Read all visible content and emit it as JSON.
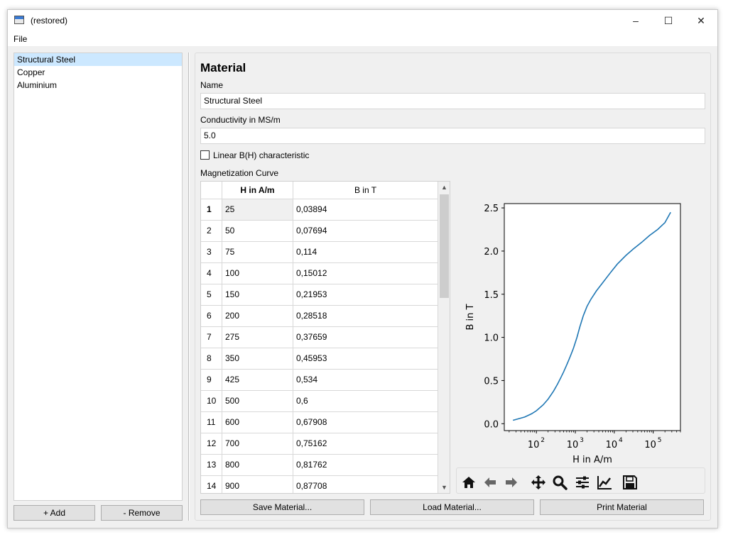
{
  "window": {
    "title": "(restored)",
    "minimize": "–",
    "maximize": "☐",
    "close": "✕"
  },
  "menu": {
    "file": "File"
  },
  "materials": {
    "items": [
      "Structural Steel",
      "Copper",
      "Aluminium"
    ],
    "selected_index": 0,
    "add_label": "+ Add",
    "remove_label": "- Remove"
  },
  "editor": {
    "heading": "Material",
    "name_label": "Name",
    "name_value": "Structural Steel",
    "conductivity_label": "Conductivity in MS/m",
    "conductivity_value": "5.0",
    "linear_label": "Linear B(H) characteristic",
    "linear_checked": false,
    "curve_label": "Magnetization Curve"
  },
  "table": {
    "columns": [
      "H in A/m",
      "B in T"
    ],
    "rows": [
      [
        "1",
        "25",
        "0,03894"
      ],
      [
        "2",
        "50",
        "0,07694"
      ],
      [
        "3",
        "75",
        "0,114"
      ],
      [
        "4",
        "100",
        "0,15012"
      ],
      [
        "5",
        "150",
        "0,21953"
      ],
      [
        "6",
        "200",
        "0,28518"
      ],
      [
        "7",
        "275",
        "0,37659"
      ],
      [
        "8",
        "350",
        "0,45953"
      ],
      [
        "9",
        "425",
        "0,534"
      ],
      [
        "10",
        "500",
        "0,6"
      ],
      [
        "11",
        "600",
        "0,67908"
      ],
      [
        "12",
        "700",
        "0,75162"
      ],
      [
        "13",
        "800",
        "0,81762"
      ],
      [
        "14",
        "900",
        "0,87708"
      ]
    ]
  },
  "chart_data": {
    "type": "line",
    "xlabel": "H in A/m",
    "ylabel": "B in T",
    "xscale": "log",
    "xlim": [
      15,
      500000
    ],
    "ylim": [
      -0.08,
      2.55
    ],
    "xticks": [
      100,
      1000,
      10000,
      100000
    ],
    "xtick_labels": [
      "10",
      "10",
      "10",
      "10"
    ],
    "xtick_exponents": [
      "2",
      "3",
      "4",
      "5"
    ],
    "yticks": [
      0.0,
      0.5,
      1.0,
      1.5,
      2.0,
      2.5
    ],
    "ytick_labels": [
      "0.0",
      "0.5",
      "1.0",
      "1.5",
      "2.0",
      "2.5"
    ],
    "grid": false,
    "color": "#1f77b4",
    "x": [
      25,
      50,
      75,
      100,
      150,
      200,
      275,
      350,
      425,
      500,
      600,
      700,
      800,
      900,
      1100,
      1300,
      1600,
      2000,
      2500,
      3500,
      5000,
      8000,
      12000,
      20000,
      30000,
      50000,
      80000,
      130000,
      200000,
      280000
    ],
    "y": [
      0.03894,
      0.07694,
      0.114,
      0.15012,
      0.21953,
      0.28518,
      0.37659,
      0.45953,
      0.534,
      0.6,
      0.67908,
      0.75162,
      0.81762,
      0.87708,
      1.0,
      1.12,
      1.25,
      1.36,
      1.44,
      1.54,
      1.63,
      1.75,
      1.85,
      1.95,
      2.02,
      2.1,
      2.18,
      2.25,
      2.33,
      2.45
    ]
  },
  "toolbar": {
    "icons": [
      "home-icon",
      "back-icon",
      "forward-icon",
      "pan-icon",
      "zoom-icon",
      "configure-subplots-icon",
      "edit-axis-icon",
      "save-icon"
    ]
  },
  "actions": {
    "save_label": "Save Material...",
    "load_label": "Load Material...",
    "print_label": "Print Material"
  }
}
